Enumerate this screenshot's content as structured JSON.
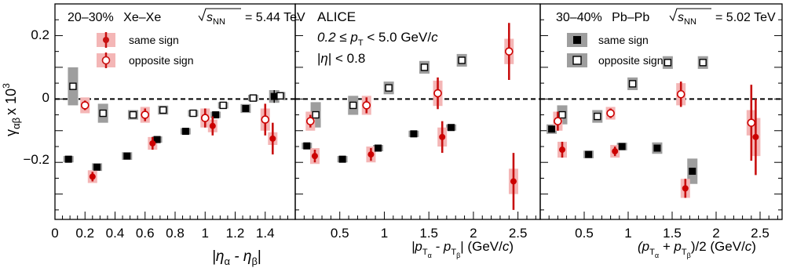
{
  "figure": {
    "y_axis_label": "γ",
    "y_axis_sub": "αβ",
    "y_axis_suffix": "x 10",
    "y_axis_exp": "3",
    "ylim": [
      -0.38,
      0.3
    ],
    "y_ticks": [
      {
        "v": -0.2,
        "label": "−0.2"
      },
      {
        "v": 0,
        "label": "0"
      },
      {
        "v": 0.2,
        "label": "0.2"
      }
    ],
    "colors": {
      "same_sign": "#000000",
      "opposite_sign": "#cc0000",
      "syst_box_gray": "#9e9e9e",
      "syst_box_pink": "#f4b6b6",
      "stat_bar_red": "#c81010"
    }
  },
  "chart_data": [
    {
      "type": "scatter",
      "panel": "left",
      "xlim": [
        0,
        1.6
      ],
      "x_ticks": [
        {
          "v": 0,
          "label": "0"
        },
        {
          "v": 0.2,
          "label": "0.2"
        },
        {
          "v": 0.4,
          "label": "0.4"
        },
        {
          "v": 0.6,
          "label": "0.6"
        },
        {
          "v": 0.8,
          "label": "0.8"
        },
        {
          "v": 1.0,
          "label": "1"
        },
        {
          "v": 1.2,
          "label": "1.2"
        },
        {
          "v": 1.4,
          "label": "1.4"
        }
      ],
      "xlabel": {
        "a": "|η",
        "b": "α",
        "c": " - η",
        "d": "β",
        "e": "|"
      },
      "annotations": {
        "centrality": "20–30%",
        "system": "Xe–Xe",
        "energy": "= 5.44 TeV"
      },
      "legend": {
        "same": "same sign",
        "opposite": "opposite sign"
      },
      "series": [
        {
          "name": "same sign",
          "style": "black-square",
          "points": [
            {
              "x": 0.09,
              "y": -0.19,
              "err": 0.005,
              "sys": 0.01
            },
            {
              "x": 0.28,
              "y": -0.215,
              "err": 0.005,
              "sys": 0.012
            },
            {
              "x": 0.48,
              "y": -0.18,
              "err": 0.005,
              "sys": 0.012
            },
            {
              "x": 0.68,
              "y": -0.128,
              "err": 0.005,
              "sys": 0.01
            },
            {
              "x": 0.87,
              "y": -0.102,
              "err": 0.005,
              "sys": 0.01
            },
            {
              "x": 1.07,
              "y": -0.05,
              "err": 0.005,
              "sys": 0.01
            },
            {
              "x": 1.27,
              "y": -0.03,
              "err": 0.005,
              "sys": 0.014
            },
            {
              "x": 1.46,
              "y": 0.008,
              "err": 0.02,
              "sys": 0.02
            }
          ]
        },
        {
          "name": "opposite sign",
          "style": "open-gray-square",
          "points": [
            {
              "x": 0.12,
              "y": 0.04,
              "err": 0.005,
              "sys": 0.06
            },
            {
              "x": 0.32,
              "y": -0.045,
              "err": 0.005,
              "sys": 0.03
            },
            {
              "x": 0.52,
              "y": -0.05,
              "err": 0.005,
              "sys": 0.015
            },
            {
              "x": 0.72,
              "y": -0.035,
              "err": 0.005,
              "sys": 0.014
            },
            {
              "x": 0.92,
              "y": -0.045,
              "err": 0.005,
              "sys": 0.01
            },
            {
              "x": 1.12,
              "y": -0.02,
              "err": 0.005,
              "sys": 0.01
            },
            {
              "x": 1.32,
              "y": 0.003,
              "err": 0.005,
              "sys": 0.01
            },
            {
              "x": 1.5,
              "y": 0.01,
              "err": 0.005,
              "sys": 0.012
            }
          ]
        },
        {
          "name": "same sign",
          "style": "red-filled-circle",
          "points": [
            {
              "x": 0.25,
              "y": -0.245,
              "err": 0.015,
              "sys": 0.02
            },
            {
              "x": 0.65,
              "y": -0.14,
              "err": 0.02,
              "sys": 0.02
            },
            {
              "x": 1.05,
              "y": -0.085,
              "err": 0.03,
              "sys": 0.02
            },
            {
              "x": 1.45,
              "y": -0.125,
              "err": 0.05,
              "sys": 0.02
            }
          ]
        },
        {
          "name": "opposite sign",
          "style": "red-open-circle",
          "points": [
            {
              "x": 0.2,
              "y": -0.02,
              "err": 0.015,
              "sys": 0.025
            },
            {
              "x": 0.6,
              "y": -0.05,
              "err": 0.02,
              "sys": 0.025
            },
            {
              "x": 1.0,
              "y": -0.06,
              "err": 0.03,
              "sys": 0.03
            },
            {
              "x": 1.4,
              "y": -0.065,
              "err": 0.05,
              "sys": 0.035
            }
          ]
        }
      ]
    },
    {
      "type": "scatter",
      "panel": "middle",
      "xlim": [
        0,
        2.75
      ],
      "x_ticks": [
        {
          "v": 0.5,
          "label": "0.5"
        },
        {
          "v": 1.0,
          "label": "1"
        },
        {
          "v": 1.5,
          "label": "1.5"
        },
        {
          "v": 2.0,
          "label": "2"
        },
        {
          "v": 2.5,
          "label": "2.5"
        }
      ],
      "xlabel": {
        "a": "|p",
        "a_sub": "T",
        "a_subsub": "α",
        "b": " - p",
        "b_sub": "T",
        "b_subsub": "β",
        "c": "| (GeV/",
        "c_it": "c",
        "d": ")"
      },
      "annotations": {
        "experiment": "ALICE",
        "pt_a": "0.2 ≤ p",
        "pt_sub": "T",
        "pt_b": " < 5.0 GeV/",
        "pt_c": "c",
        "eta_a": "|",
        "eta_b": "η",
        "eta_c": "| < 0.8"
      },
      "series": [
        {
          "name": "same sign",
          "style": "black-square",
          "points": [
            {
              "x": 0.13,
              "y": -0.148,
              "err": 0.005,
              "sys": 0.01
            },
            {
              "x": 0.53,
              "y": -0.19,
              "err": 0.005,
              "sys": 0.01
            },
            {
              "x": 0.93,
              "y": -0.155,
              "err": 0.005,
              "sys": 0.01
            },
            {
              "x": 1.33,
              "y": -0.11,
              "err": 0.005,
              "sys": 0.01
            },
            {
              "x": 1.75,
              "y": -0.09,
              "err": 0.01,
              "sys": 0.01
            }
          ]
        },
        {
          "name": "opposite sign",
          "style": "open-gray-square",
          "points": [
            {
              "x": 0.23,
              "y": -0.05,
              "err": 0.005,
              "sys": 0.04
            },
            {
              "x": 0.65,
              "y": -0.02,
              "err": 0.005,
              "sys": 0.03
            },
            {
              "x": 1.05,
              "y": 0.035,
              "err": 0.005,
              "sys": 0.02
            },
            {
              "x": 1.45,
              "y": 0.1,
              "err": 0.005,
              "sys": 0.02
            },
            {
              "x": 1.87,
              "y": 0.122,
              "err": 0.01,
              "sys": 0.02
            }
          ]
        },
        {
          "name": "same sign",
          "style": "red-filled-circle",
          "points": [
            {
              "x": 0.22,
              "y": -0.18,
              "err": 0.02,
              "sys": 0.025
            },
            {
              "x": 0.85,
              "y": -0.175,
              "err": 0.02,
              "sys": 0.025
            },
            {
              "x": 1.65,
              "y": -0.12,
              "err": 0.05,
              "sys": 0.03
            },
            {
              "x": 2.45,
              "y": -0.26,
              "err": 0.09,
              "sys": 0.04
            }
          ]
        },
        {
          "name": "opposite sign",
          "style": "red-open-circle",
          "points": [
            {
              "x": 0.17,
              "y": -0.07,
              "err": 0.02,
              "sys": 0.03
            },
            {
              "x": 0.8,
              "y": -0.02,
              "err": 0.025,
              "sys": 0.03
            },
            {
              "x": 1.6,
              "y": 0.018,
              "err": 0.05,
              "sys": 0.04
            },
            {
              "x": 2.4,
              "y": 0.15,
              "err": 0.09,
              "sys": 0.04
            }
          ]
        }
      ]
    },
    {
      "type": "scatter",
      "panel": "right",
      "xlim": [
        0,
        2.75
      ],
      "x_ticks": [
        {
          "v": 0.5,
          "label": "0.5"
        },
        {
          "v": 1.0,
          "label": "1"
        },
        {
          "v": 1.5,
          "label": "1.5"
        },
        {
          "v": 2.0,
          "label": "2"
        },
        {
          "v": 2.5,
          "label": "2.5"
        }
      ],
      "xlabel": {
        "a": "(p",
        "a_sub": "T",
        "a_subsub": "α",
        "b": " + p",
        "b_sub": "T",
        "b_subsub": "β",
        "c": ")/2 (GeV/",
        "c_it": "c",
        "d": ")"
      },
      "annotations": {
        "centrality": "30–40%",
        "system": "Pb–Pb",
        "energy": "= 5.02 TeV"
      },
      "legend": {
        "same": "same sign",
        "opposite": "opposite sign"
      },
      "series": [
        {
          "name": "same sign",
          "style": "black-square",
          "points": [
            {
              "x": 0.13,
              "y": -0.095,
              "err": 0.005,
              "sys": 0.015
            },
            {
              "x": 0.55,
              "y": -0.175,
              "err": 0.005,
              "sys": 0.012
            },
            {
              "x": 0.93,
              "y": -0.15,
              "err": 0.005,
              "sys": 0.012
            },
            {
              "x": 1.33,
              "y": -0.155,
              "err": 0.005,
              "sys": 0.018
            },
            {
              "x": 1.73,
              "y": -0.228,
              "err": 0.01,
              "sys": 0.04
            }
          ]
        },
        {
          "name": "opposite sign",
          "style": "open-gray-square",
          "points": [
            {
              "x": 0.25,
              "y": -0.05,
              "err": 0.005,
              "sys": 0.03
            },
            {
              "x": 0.65,
              "y": -0.055,
              "err": 0.005,
              "sys": 0.02
            },
            {
              "x": 1.05,
              "y": 0.048,
              "err": 0.005,
              "sys": 0.02
            },
            {
              "x": 1.45,
              "y": 0.115,
              "err": 0.005,
              "sys": 0.02
            },
            {
              "x": 1.85,
              "y": 0.115,
              "err": 0.005,
              "sys": 0.02
            }
          ]
        },
        {
          "name": "same sign",
          "style": "red-filled-circle",
          "points": [
            {
              "x": 0.25,
              "y": -0.16,
              "err": 0.025,
              "sys": 0.025
            },
            {
              "x": 0.85,
              "y": -0.165,
              "err": 0.015,
              "sys": 0.02
            },
            {
              "x": 1.65,
              "y": -0.282,
              "err": 0.03,
              "sys": 0.03
            },
            {
              "x": 2.45,
              "y": -0.12,
              "err": 0.12,
              "sys": 0.06
            }
          ]
        },
        {
          "name": "opposite sign",
          "style": "red-open-circle",
          "points": [
            {
              "x": 0.2,
              "y": -0.07,
              "err": 0.03,
              "sys": 0.03
            },
            {
              "x": 0.8,
              "y": -0.045,
              "err": 0.015,
              "sys": 0.02
            },
            {
              "x": 1.6,
              "y": 0.015,
              "err": 0.04,
              "sys": 0.035
            },
            {
              "x": 2.4,
              "y": -0.075,
              "err": 0.12,
              "sys": 0.04
            }
          ]
        }
      ]
    }
  ]
}
